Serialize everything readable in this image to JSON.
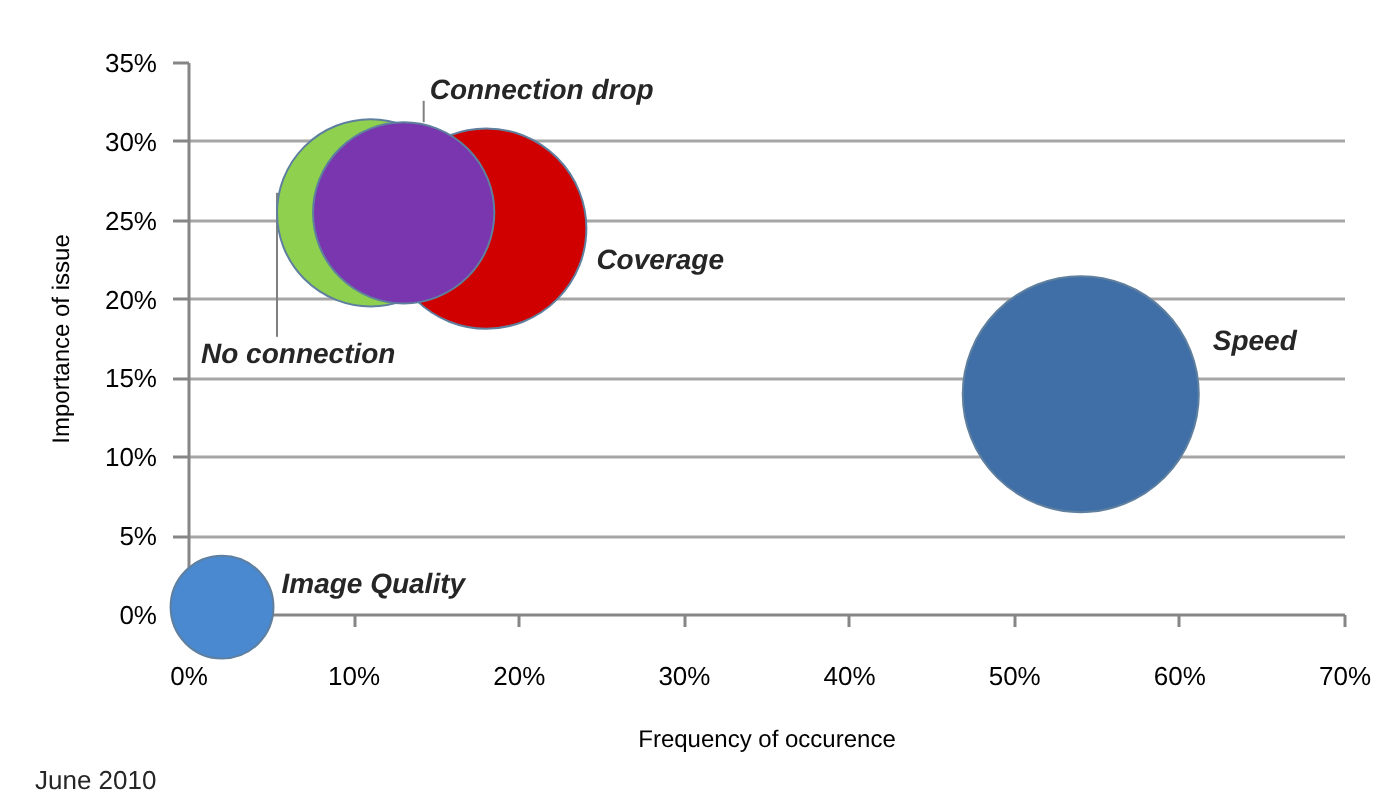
{
  "chart_data": {
    "type": "bubble",
    "xlabel": "Frequency of occurence",
    "ylabel": "Importance of issue",
    "annotations": [
      "June 2010"
    ],
    "xlim": [
      0,
      70
    ],
    "ylim": [
      0,
      35
    ],
    "xticks": [
      {
        "value": 0,
        "label": "0%"
      },
      {
        "value": 10,
        "label": "10%"
      },
      {
        "value": 20,
        "label": "20%"
      },
      {
        "value": 30,
        "label": "30%"
      },
      {
        "value": 40,
        "label": "40%"
      },
      {
        "value": 50,
        "label": "50%"
      },
      {
        "value": 60,
        "label": "60%"
      },
      {
        "value": 70,
        "label": "70%"
      }
    ],
    "yticks": [
      {
        "value": 0,
        "label": "0%"
      },
      {
        "value": 5,
        "label": "5%"
      },
      {
        "value": 10,
        "label": "10%"
      },
      {
        "value": 15,
        "label": "15%"
      },
      {
        "value": 20,
        "label": "20%"
      },
      {
        "value": 25,
        "label": "25%"
      },
      {
        "value": 30,
        "label": "30%"
      },
      {
        "value": 35,
        "label": "35%"
      }
    ],
    "grid": "y",
    "marker": "circle",
    "series": [
      {
        "name": "Speed",
        "color": "#3f6fa6",
        "x": [
          54
        ],
        "values": [
          14
        ],
        "sizes": [
          1
        ]
      },
      {
        "name": "Coverage",
        "color": "#d00000",
        "x": [
          18
        ],
        "values": [
          24.5
        ],
        "sizes": [
          0.72
        ]
      },
      {
        "name": "No connection",
        "color": "#8fd14f",
        "x": [
          11
        ],
        "values": [
          25.5
        ],
        "sizes": [
          0.63
        ]
      },
      {
        "name": "Connection drop",
        "color": "#7a36ae",
        "x": [
          13
        ],
        "values": [
          25.5
        ],
        "sizes": [
          0.59
        ]
      },
      {
        "name": "Image Quality",
        "color": "#4a88d0",
        "x": [
          2
        ],
        "values": [
          0.5
        ],
        "sizes": [
          0.19
        ]
      }
    ]
  }
}
